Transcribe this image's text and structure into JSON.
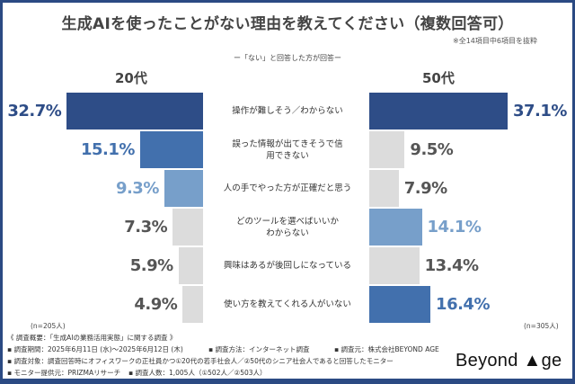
{
  "chart_data": {
    "type": "bar",
    "title": "生成AIを使ったことがない理由を教えてください（複数回答可）",
    "note": "※全14項目中6項目を抜粋",
    "subtitle": "ー「ない」と回答した方が回答ー",
    "categories": [
      "操作が難しそう／わからない",
      "誤った情報が出てきそうで信用できない",
      "人の手でやった方が正確だと思う",
      "どのツールを選べばいいかわからない",
      "興味はあるが後回しになっている",
      "使い方を教えてくれる人がいない"
    ],
    "category_lines": [
      [
        "操作が難しそう／わからない"
      ],
      [
        "誤った情報が出てきそうで信",
        "用できない"
      ],
      [
        "人の手でやった方が正確だと思う"
      ],
      [
        "どのツールを選べばいいか",
        "わからない"
      ],
      [
        "興味はあるが後回しになっている"
      ],
      [
        "使い方を教えてくれる人がいない"
      ]
    ],
    "series": [
      {
        "name": "20代",
        "values": [
          32.7,
          15.1,
          9.3,
          7.3,
          5.9,
          4.9
        ],
        "labels": [
          "32.7%",
          "15.1%",
          "9.3%",
          "7.3%",
          "5.9%",
          "4.9%"
        ],
        "colors": [
          "#2e4d87",
          "#4270ad",
          "#779fca",
          "#dcdcdc",
          "#dcdcdc",
          "#dcdcdc"
        ],
        "label_colors": [
          "#2e4d87",
          "#4270ad",
          "#779fca",
          "#555555",
          "#555555",
          "#555555"
        ],
        "n": "(n=205人)"
      },
      {
        "name": "50代",
        "values": [
          37.1,
          9.5,
          7.9,
          14.1,
          13.4,
          16.4
        ],
        "labels": [
          "37.1%",
          "9.5%",
          "7.9%",
          "14.1%",
          "13.4%",
          "16.4%"
        ],
        "colors": [
          "#2e4d87",
          "#dcdcdc",
          "#dcdcdc",
          "#779fca",
          "#dcdcdc",
          "#4270ad"
        ],
        "label_colors": [
          "#2e4d87",
          "#555555",
          "#555555",
          "#779fca",
          "#555555",
          "#4270ad"
        ],
        "n": "(n=305人)"
      }
    ],
    "unit": "%"
  },
  "footer": {
    "lines": [
      "《 調査概要：「生成AIの業務活用実態」に関する調査 》",
      "▪ 調査期間：2025年6月11日 (水)～2025年6月12日 (木)",
      "▪ 調査方法：インターネット調査",
      "▪ 調査元：株式会社BEYOND AGE",
      "▪ 調査対象：調査回答時にオフィスワークの正社員かつ①20代の若手社会人／②50代のシニア社会人であると回答したモニター",
      "▪ モニター提供元：PRIZMAリサーチ",
      "▪ 調査人数：1,005人（①502人／②503人）"
    ]
  },
  "logo": {
    "text": "Beyond ▲ge"
  },
  "colors": {
    "frame": "#2b4a83"
  }
}
